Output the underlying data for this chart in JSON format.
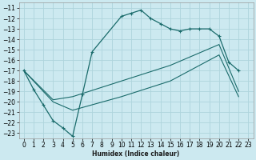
{
  "xlabel": "Humidex (Indice chaleur)",
  "ylabel": "",
  "background_color": "#cce9f0",
  "grid_color": "#aed4dc",
  "line_color": "#1a6b6b",
  "xlim": [
    -0.5,
    23.5
  ],
  "ylim": [
    -23.5,
    -10.5
  ],
  "xticks": [
    0,
    1,
    2,
    3,
    4,
    5,
    6,
    7,
    8,
    9,
    10,
    11,
    12,
    13,
    14,
    15,
    16,
    17,
    18,
    19,
    20,
    21,
    22,
    23
  ],
  "yticks": [
    -11,
    -12,
    -13,
    -14,
    -15,
    -16,
    -17,
    -18,
    -19,
    -20,
    -21,
    -22,
    -23
  ],
  "line1_x": [
    0,
    1,
    2,
    3,
    4,
    5,
    6,
    7,
    10,
    11,
    12,
    13,
    14,
    15,
    16,
    17,
    18,
    19,
    20,
    21,
    22
  ],
  "line1_y": [
    -17.0,
    -18.8,
    -20.3,
    -21.8,
    -22.5,
    -23.3,
    -19.3,
    -15.2,
    -11.8,
    -11.5,
    -11.2,
    -12.0,
    -12.5,
    -13.0,
    -13.2,
    -13.0,
    -13.0,
    -13.0,
    -13.7,
    -16.2,
    -17.0
  ],
  "line2_x": [
    0,
    3,
    5,
    10,
    15,
    20,
    22
  ],
  "line2_y": [
    -17.0,
    -19.8,
    -19.5,
    -18.0,
    -16.5,
    -14.5,
    -19.0
  ],
  "line3_x": [
    0,
    3,
    5,
    10,
    15,
    20,
    22
  ],
  "line3_y": [
    -17.0,
    -20.0,
    -20.8,
    -19.5,
    -18.0,
    -15.5,
    -19.5
  ]
}
